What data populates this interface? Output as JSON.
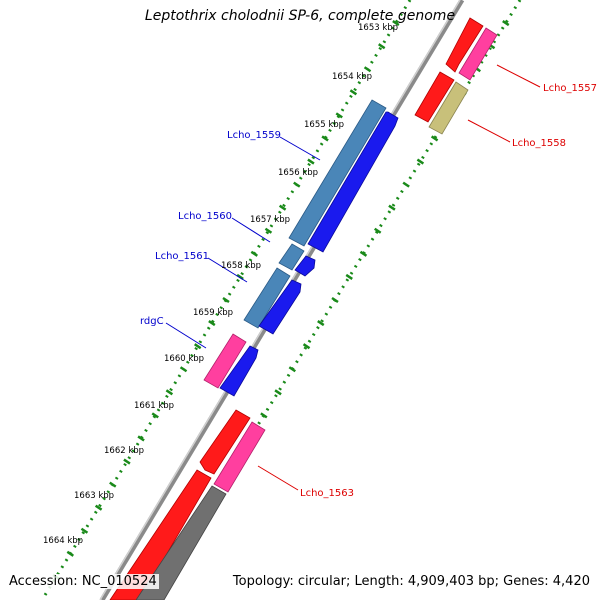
{
  "title": "Leptothrix cholodnii SP-6, complete genome",
  "accession": "Accession: NC_010524",
  "topology": "Topology: circular; Length: 4,909,403 bp; Genes: 4,420",
  "colors": {
    "backbone": "#8a8a8a",
    "tick": "#1a8a1a",
    "plus_label": "#0000cc",
    "minus_label": "#dd0000",
    "cds_red": "#ff1a1a",
    "cds_pink": "#ff3f9f",
    "cds_steel": "#4a86b8",
    "cds_blue": "#1a1aee",
    "cds_olive": "#c8c07a",
    "cds_grey": "#707070"
  },
  "kbp_ticks": [
    "1653 kbp",
    "1654 kbp",
    "1655 kbp",
    "1656 kbp",
    "1657 kbp",
    "1658 kbp",
    "1659 kbp",
    "1660 kbp",
    "1661 kbp",
    "1662 kbp",
    "1663 kbp",
    "1664 kbp"
  ],
  "gene_labels_plus": [
    "Lcho_1559",
    "Lcho_1560",
    "Lcho_1561",
    "rdgC"
  ],
  "gene_labels_minus": [
    "Lcho_1557",
    "Lcho_1558",
    "Lcho_1563"
  ]
}
